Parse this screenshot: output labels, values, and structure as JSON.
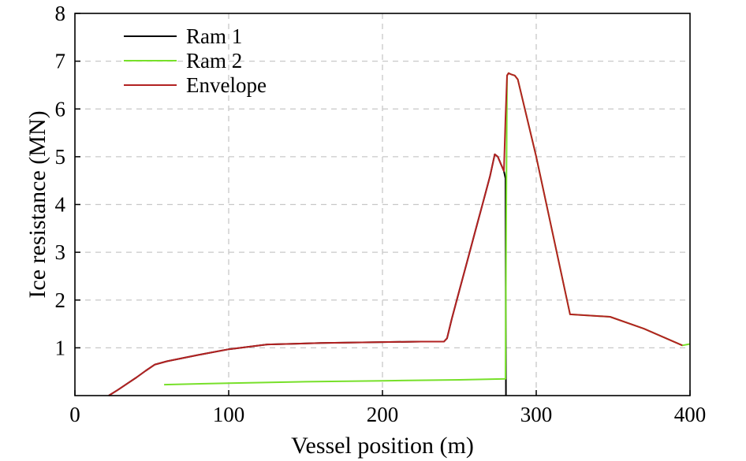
{
  "chart_data": {
    "type": "line",
    "xlabel": "Vessel position (m)",
    "ylabel": "Ice resistance (MN)",
    "xlim": [
      0,
      400
    ],
    "ylim": [
      0,
      8
    ],
    "xticks": [
      0,
      100,
      200,
      300,
      400
    ],
    "yticks": [
      1,
      2,
      3,
      4,
      5,
      6,
      7,
      8
    ],
    "grid": true,
    "legend_position": "top-left",
    "series": [
      {
        "name": "Ram 1",
        "color": "#000000",
        "x": [
          22,
          28,
          34,
          40,
          46,
          52,
          60,
          80,
          100,
          125,
          160,
          200,
          225,
          240,
          242,
          245,
          250,
          255,
          260,
          265,
          270,
          273,
          275,
          277,
          279,
          280,
          280.3
        ],
        "y": [
          0,
          0.12,
          0.25,
          0.38,
          0.52,
          0.65,
          0.72,
          0.85,
          0.97,
          1.07,
          1.1,
          1.12,
          1.13,
          1.13,
          1.2,
          1.6,
          2.2,
          2.8,
          3.4,
          4.0,
          4.6,
          5.05,
          5.0,
          4.85,
          4.7,
          4.55,
          0
        ]
      },
      {
        "name": "Ram 2",
        "color": "#77e02a",
        "x": [
          58,
          100,
          150,
          200,
          250,
          280,
          280.3,
          280.6,
          281,
          282,
          284,
          286,
          288,
          300,
          322,
          348,
          370,
          395,
          400
        ],
        "y": [
          0.23,
          0.26,
          0.29,
          0.31,
          0.33,
          0.35,
          2.6,
          4.5,
          6.7,
          6.75,
          6.72,
          6.7,
          6.62,
          5.0,
          1.7,
          1.65,
          1.4,
          1.05,
          1.08
        ]
      },
      {
        "name": "Envelope",
        "color": "#b22222",
        "x": [
          22,
          28,
          34,
          40,
          46,
          52,
          60,
          80,
          100,
          125,
          160,
          200,
          225,
          240,
          242,
          245,
          250,
          255,
          260,
          265,
          270,
          273,
          275,
          277,
          279,
          280,
          281,
          282,
          284,
          286,
          288,
          300,
          322,
          348,
          370,
          395
        ],
        "y": [
          0,
          0.12,
          0.25,
          0.38,
          0.52,
          0.65,
          0.72,
          0.85,
          0.97,
          1.07,
          1.1,
          1.12,
          1.13,
          1.13,
          1.2,
          1.6,
          2.2,
          2.8,
          3.4,
          4.0,
          4.6,
          5.05,
          5.0,
          4.85,
          4.7,
          5.8,
          6.7,
          6.75,
          6.72,
          6.7,
          6.62,
          5.0,
          1.7,
          1.65,
          1.4,
          1.05
        ]
      }
    ]
  }
}
